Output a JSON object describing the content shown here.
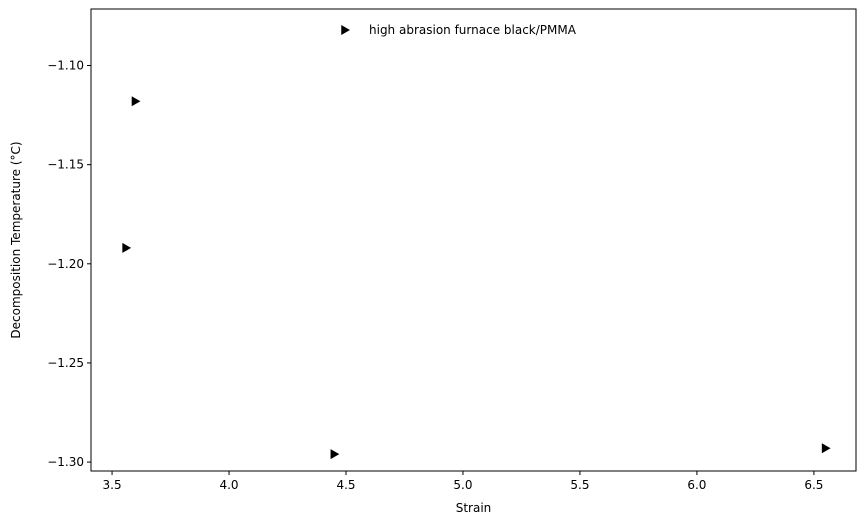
{
  "chart_data": {
    "type": "scatter",
    "title": "",
    "xlabel": "Strain",
    "ylabel": "Decomposition Temperature (°C)",
    "xlim": [
      3.41,
      6.68
    ],
    "ylim": [
      -1.3045,
      -1.0715
    ],
    "xticks": [
      3.5,
      4.0,
      4.5,
      5.0,
      5.5,
      6.0,
      6.5
    ],
    "yticks": [
      -1.3,
      -1.25,
      -1.2,
      -1.15,
      -1.1
    ],
    "xtick_labels": [
      "3.5",
      "4.0",
      "4.5",
      "5.0",
      "5.5",
      "6.0",
      "6.5"
    ],
    "ytick_labels": [
      "−1.30",
      "−1.25",
      "−1.20",
      "−1.15",
      "−1.10"
    ],
    "grid": false,
    "legend_position": "top",
    "marker": "triangle-right",
    "color": "#000000",
    "series": [
      {
        "name": "high abrasion furnace black/PMMA",
        "x": [
          3.6,
          3.56,
          4.45,
          6.55
        ],
        "y": [
          -1.118,
          -1.192,
          -1.296,
          -1.293
        ]
      }
    ]
  }
}
